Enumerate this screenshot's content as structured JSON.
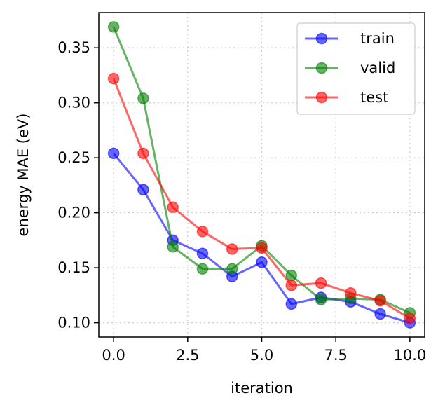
{
  "chart_data": {
    "type": "line",
    "xlabel": "iteration",
    "ylabel": "energy MAE (eV)",
    "xlim": [
      -0.5,
      10.5
    ],
    "ylim": [
      0.087,
      0.382
    ],
    "xticks": [
      0.0,
      2.5,
      5.0,
      7.5,
      10.0
    ],
    "xtick_labels": [
      "0.0",
      "2.5",
      "5.0",
      "7.5",
      "10.0"
    ],
    "yticks": [
      0.1,
      0.15,
      0.2,
      0.25,
      0.3,
      0.35
    ],
    "ytick_labels": [
      "0.10",
      "0.15",
      "0.20",
      "0.25",
      "0.30",
      "0.35"
    ],
    "grid": true,
    "legend_position": "top-right",
    "x": [
      0,
      1,
      2,
      3,
      4,
      5,
      6,
      7,
      8,
      9,
      10
    ],
    "series": [
      {
        "name": "train",
        "color": "#0000ff",
        "marker": "circle",
        "values": [
          0.254,
          0.221,
          0.175,
          0.163,
          0.142,
          0.155,
          0.117,
          0.123,
          0.119,
          0.108,
          0.1
        ]
      },
      {
        "name": "valid",
        "color": "#008000",
        "marker": "circle",
        "values": [
          0.369,
          0.304,
          0.169,
          0.149,
          0.149,
          0.17,
          0.143,
          0.121,
          0.122,
          0.121,
          0.109
        ]
      },
      {
        "name": "test",
        "color": "#ff0000",
        "marker": "circle",
        "values": [
          0.322,
          0.254,
          0.205,
          0.183,
          0.167,
          0.168,
          0.134,
          0.136,
          0.127,
          0.12,
          0.104
        ]
      }
    ]
  }
}
